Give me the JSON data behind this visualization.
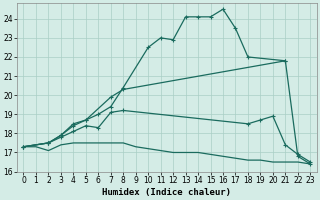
{
  "xlabel": "Humidex (Indice chaleur)",
  "bg_color": "#d4ece6",
  "line_color": "#1a6b5e",
  "grid_color": "#aacfc5",
  "xlim": [
    -0.5,
    23.5
  ],
  "ylim": [
    16,
    24.8
  ],
  "yticks": [
    16,
    17,
    18,
    19,
    20,
    21,
    22,
    23,
    24
  ],
  "xticks": [
    0,
    1,
    2,
    3,
    4,
    5,
    6,
    7,
    8,
    9,
    10,
    11,
    12,
    13,
    14,
    15,
    16,
    17,
    18,
    19,
    20,
    21,
    22,
    23
  ],
  "line1_x": [
    0,
    1,
    2,
    3,
    4,
    5,
    6,
    7,
    8,
    9,
    10,
    11,
    12,
    13,
    14,
    15,
    16,
    17,
    18,
    19,
    20,
    21,
    22,
    23
  ],
  "line1_y": [
    17.3,
    17.3,
    17.1,
    17.4,
    17.5,
    17.5,
    17.5,
    17.5,
    17.5,
    17.3,
    17.2,
    17.1,
    17.0,
    17.0,
    17.0,
    16.9,
    16.8,
    16.7,
    16.6,
    16.6,
    16.5,
    16.5,
    16.5,
    16.4
  ],
  "line2_x": [
    0,
    2,
    3,
    4,
    5,
    6,
    7,
    8,
    18,
    19,
    20,
    21,
    22,
    23
  ],
  "line2_y": [
    17.3,
    17.5,
    17.8,
    18.1,
    18.4,
    18.3,
    19.1,
    19.2,
    18.5,
    18.7,
    18.9,
    17.4,
    16.9,
    16.5
  ],
  "line3_x": [
    0,
    2,
    3,
    4,
    5,
    7,
    8,
    21
  ],
  "line3_y": [
    17.3,
    17.5,
    17.9,
    18.5,
    18.7,
    19.9,
    20.3,
    21.8
  ],
  "line4_x": [
    0,
    2,
    3,
    4,
    5,
    6,
    7,
    8,
    10,
    11,
    12,
    13,
    14,
    15,
    16,
    17,
    18,
    21,
    22,
    23
  ],
  "line4_y": [
    17.3,
    17.5,
    17.9,
    18.4,
    18.7,
    19.0,
    19.4,
    20.4,
    22.5,
    23.0,
    22.9,
    24.1,
    24.1,
    24.1,
    24.5,
    23.5,
    22.0,
    21.8,
    16.8,
    16.4
  ]
}
